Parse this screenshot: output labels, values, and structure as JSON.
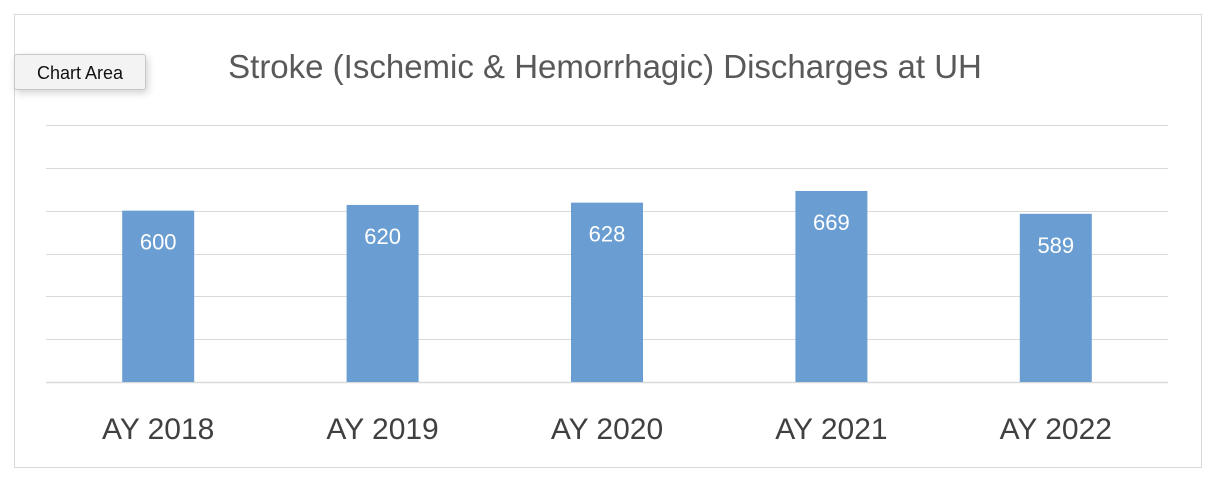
{
  "tooltip": {
    "label": "Chart Area"
  },
  "chart_data": {
    "type": "bar",
    "title": "Stroke (Ischemic & Hemorrhagic) Discharges at UH",
    "categories": [
      "AY 2018",
      "AY 2019",
      "AY 2020",
      "AY 2021",
      "AY 2022"
    ],
    "values": [
      600,
      620,
      628,
      669,
      589
    ],
    "data_labels": [
      "600",
      "620",
      "628",
      "669",
      "589"
    ],
    "ylim": [
      0,
      900
    ],
    "y_gridline_step": 150,
    "grid": true,
    "legend": "none",
    "colors": {
      "bar": "#6a9dd1",
      "gridline": "#d9d9d9",
      "title": "#595959",
      "tick_label": "#404040",
      "data_label": "#ffffff"
    }
  }
}
